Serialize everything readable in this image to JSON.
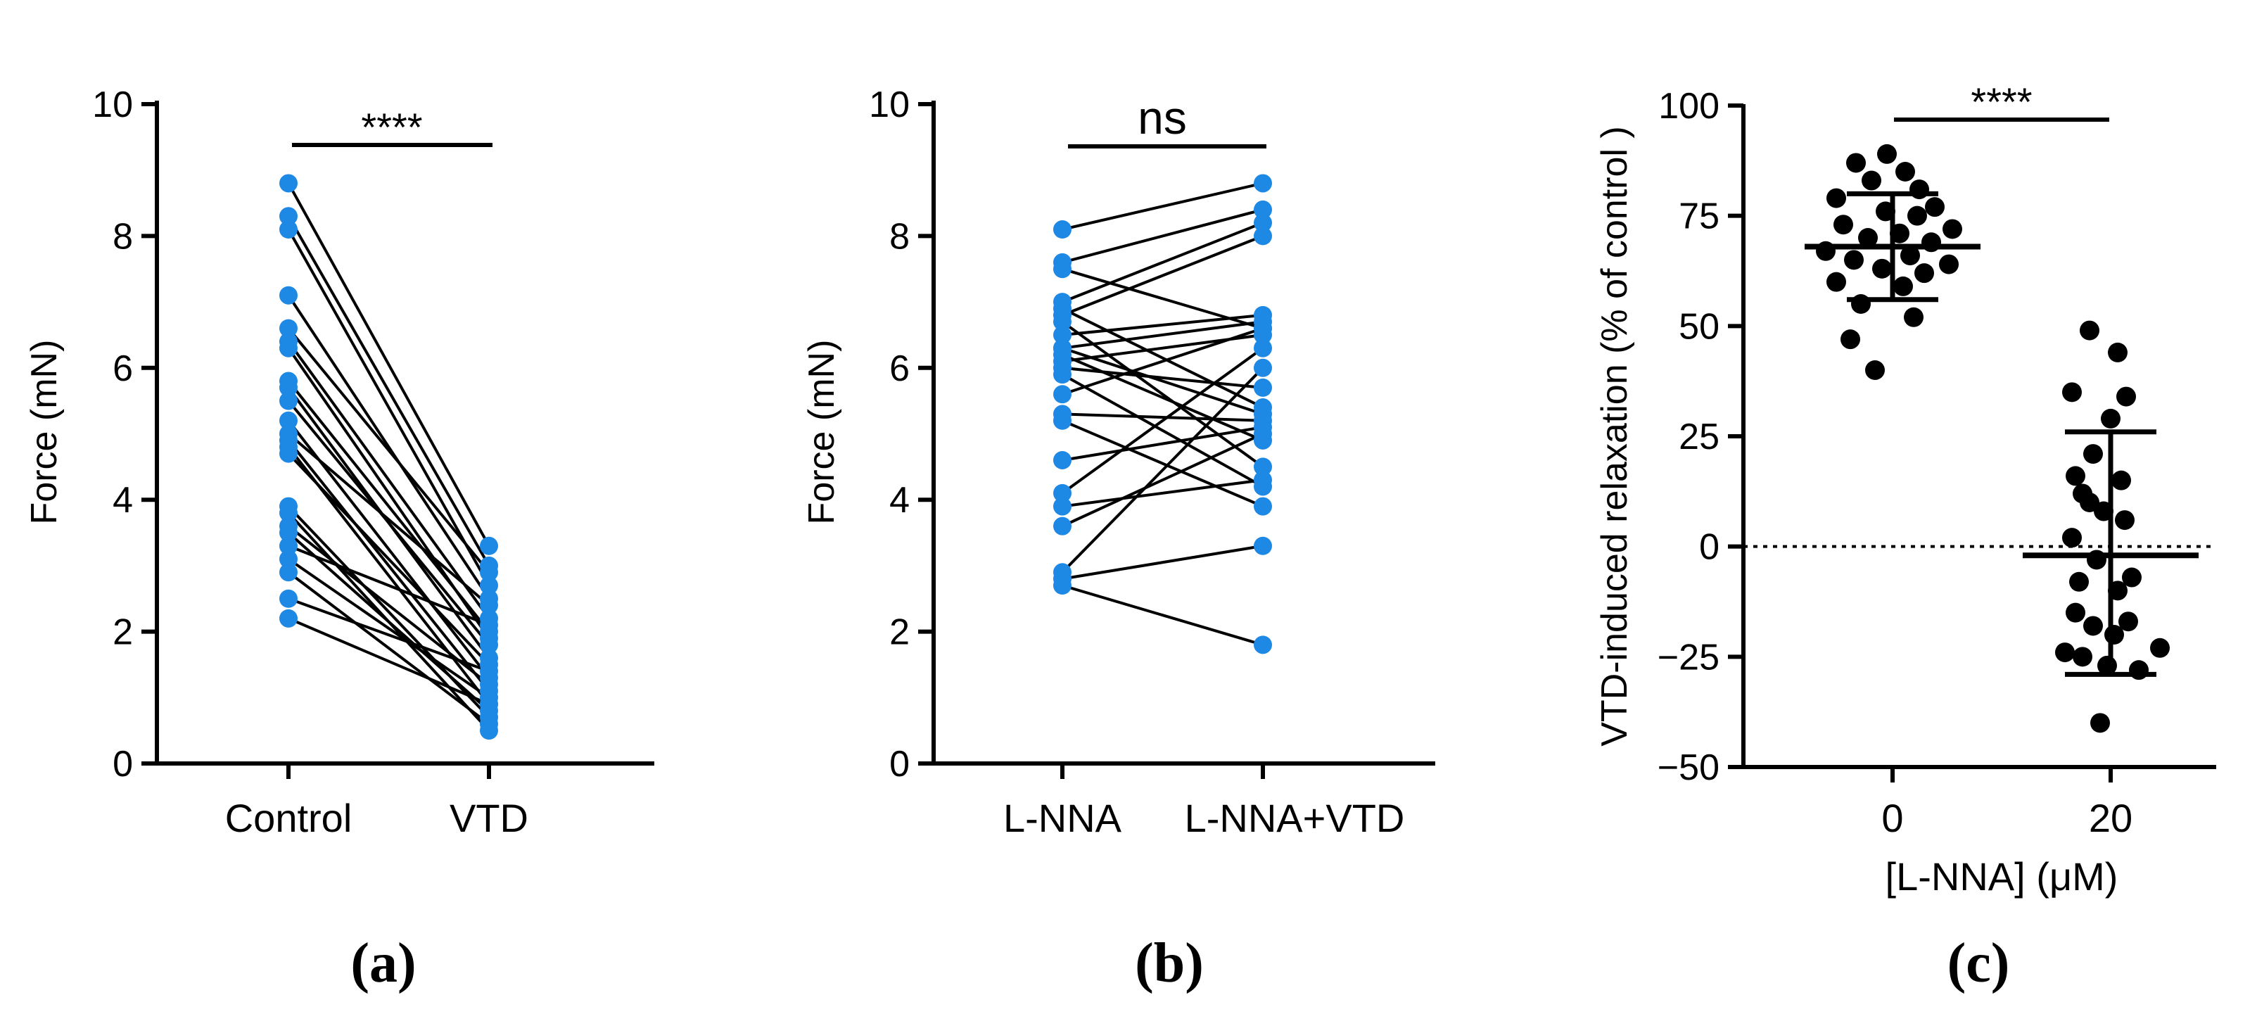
{
  "colors": {
    "blue": "#1e88e5",
    "black": "#000000"
  },
  "chart_data": [
    {
      "type": "line",
      "panel_label": "(a)",
      "ylabel": "Force (mN)",
      "ylim": [
        0,
        10
      ],
      "yticks": [
        0,
        2,
        4,
        6,
        8,
        10
      ],
      "ytick_labels": [
        "0",
        "2",
        "4",
        "6",
        "8",
        "10"
      ],
      "categories": [
        "Control",
        "VTD"
      ],
      "significance": "****",
      "pairs": [
        [
          8.8,
          3.3
        ],
        [
          8.3,
          3.0
        ],
        [
          8.1,
          2.7
        ],
        [
          7.1,
          2.5
        ],
        [
          6.6,
          2.9
        ],
        [
          6.4,
          2.2
        ],
        [
          6.3,
          1.9
        ],
        [
          5.8,
          2.0
        ],
        [
          5.7,
          1.6
        ],
        [
          5.5,
          1.8
        ],
        [
          5.2,
          1.3
        ],
        [
          5.0,
          2.4
        ],
        [
          4.9,
          1.1
        ],
        [
          4.8,
          0.9
        ],
        [
          4.7,
          1.5
        ],
        [
          3.9,
          0.7
        ],
        [
          3.8,
          0.5
        ],
        [
          3.6,
          1.2
        ],
        [
          3.5,
          0.8
        ],
        [
          3.3,
          2.1
        ],
        [
          3.1,
          1.0
        ],
        [
          2.9,
          0.6
        ],
        [
          2.5,
          1.4
        ],
        [
          2.2,
          0.9
        ]
      ]
    },
    {
      "type": "line",
      "panel_label": "(b)",
      "ylabel": "Force (mN)",
      "ylim": [
        0,
        10
      ],
      "yticks": [
        0,
        2,
        4,
        6,
        8,
        10
      ],
      "ytick_labels": [
        "0",
        "2",
        "4",
        "6",
        "8",
        "10"
      ],
      "categories": [
        "L-NNA",
        "L-NNA+VTD"
      ],
      "significance": "ns",
      "pairs": [
        [
          8.1,
          8.8
        ],
        [
          7.6,
          8.4
        ],
        [
          7.5,
          6.6
        ],
        [
          7.0,
          8.2
        ],
        [
          6.9,
          5.4
        ],
        [
          6.8,
          8.0
        ],
        [
          6.7,
          4.5
        ],
        [
          6.5,
          6.8
        ],
        [
          6.3,
          6.7
        ],
        [
          6.3,
          5.3
        ],
        [
          6.2,
          4.9
        ],
        [
          6.1,
          6.5
        ],
        [
          6.0,
          5.7
        ],
        [
          5.9,
          4.2
        ],
        [
          5.6,
          6.6
        ],
        [
          5.3,
          5.2
        ],
        [
          5.2,
          3.9
        ],
        [
          4.6,
          5.1
        ],
        [
          4.1,
          6.3
        ],
        [
          3.9,
          4.3
        ],
        [
          3.6,
          5.0
        ],
        [
          2.9,
          6.0
        ],
        [
          2.8,
          3.3
        ],
        [
          2.7,
          1.8
        ]
      ]
    },
    {
      "type": "scatter",
      "panel_label": "(c)",
      "ylabel": "VTD-induced relaxation (% of control )",
      "xlabel": "[L-NNA] (μM)",
      "ylim": [
        -50,
        100
      ],
      "yticks": [
        -50,
        -25,
        0,
        25,
        50,
        75,
        100
      ],
      "ytick_labels": [
        "−50",
        "−25",
        "0",
        "25",
        "50",
        "75",
        "100"
      ],
      "categories": [
        "0",
        "20"
      ],
      "significance": "****",
      "reference_line": 0,
      "series": [
        {
          "name": "0",
          "mean": 68,
          "sd_low": 56,
          "sd_high": 80,
          "points": [
            [
              -8,
              89
            ],
            [
              -52,
              87
            ],
            [
              18,
              85
            ],
            [
              -30,
              83
            ],
            [
              38,
              81
            ],
            [
              -80,
              79
            ],
            [
              60,
              77
            ],
            [
              -10,
              76
            ],
            [
              35,
              75
            ],
            [
              -70,
              73
            ],
            [
              85,
              72
            ],
            [
              10,
              71
            ],
            [
              -35,
              70
            ],
            [
              55,
              69
            ],
            [
              -95,
              67
            ],
            [
              25,
              66
            ],
            [
              -55,
              65
            ],
            [
              80,
              64
            ],
            [
              -15,
              63
            ],
            [
              45,
              62
            ],
            [
              -80,
              60
            ],
            [
              15,
              59
            ],
            [
              -45,
              55
            ],
            [
              30,
              52
            ],
            [
              -60,
              47
            ],
            [
              -25,
              40
            ]
          ]
        },
        {
          "name": "20",
          "mean": -2,
          "sd_low": -29,
          "sd_high": 26,
          "points": [
            [
              -30,
              49
            ],
            [
              10,
              44
            ],
            [
              -55,
              35
            ],
            [
              22,
              34
            ],
            [
              0,
              29
            ],
            [
              -25,
              21
            ],
            [
              -50,
              16
            ],
            [
              15,
              15
            ],
            [
              -40,
              12
            ],
            [
              -30,
              10
            ],
            [
              -10,
              8
            ],
            [
              20,
              6
            ],
            [
              -55,
              2
            ],
            [
              -20,
              -3
            ],
            [
              30,
              -7
            ],
            [
              -45,
              -8
            ],
            [
              10,
              -10
            ],
            [
              -50,
              -15
            ],
            [
              25,
              -17
            ],
            [
              -25,
              -18
            ],
            [
              5,
              -20
            ],
            [
              -65,
              -24
            ],
            [
              70,
              -23
            ],
            [
              -40,
              -25
            ],
            [
              -5,
              -27
            ],
            [
              40,
              -28
            ],
            [
              -15,
              -40
            ]
          ]
        }
      ]
    }
  ]
}
